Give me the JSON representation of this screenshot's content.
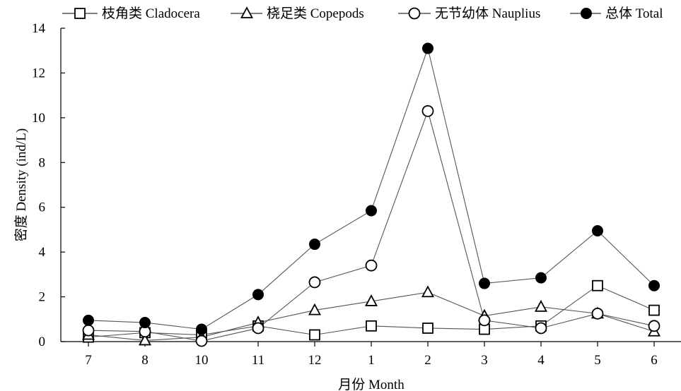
{
  "chart_data": {
    "type": "line",
    "categories": [
      "7",
      "8",
      "10",
      "11",
      "12",
      "1",
      "2",
      "3",
      "4",
      "5",
      "6"
    ],
    "xlabel": "月份 Month",
    "ylabel": "密度 Density (ind/L)",
    "ylim": [
      0,
      14
    ],
    "yticks": [
      "0",
      "2",
      "4",
      "6",
      "8",
      "10",
      "12",
      "14"
    ],
    "grid": false,
    "legend_position": "top",
    "series": [
      {
        "name": "枝角类 Cladocera",
        "marker": "square",
        "values": [
          0.2,
          0.4,
          0.3,
          0.7,
          0.3,
          0.7,
          0.6,
          0.55,
          0.7,
          2.5,
          1.4
        ]
      },
      {
        "name": "桡足类 Copepods",
        "marker": "triangle",
        "values": [
          0.3,
          0.05,
          0.2,
          0.85,
          1.4,
          1.8,
          2.2,
          1.15,
          1.55,
          1.25,
          0.45
        ]
      },
      {
        "name": "无节幼体 Nauplius",
        "marker": "circle-open",
        "values": [
          0.5,
          0.45,
          0.03,
          0.6,
          2.65,
          3.4,
          10.3,
          0.95,
          0.6,
          1.25,
          0.7
        ]
      },
      {
        "name": "总体 Total",
        "marker": "circle-filled",
        "values": [
          0.95,
          0.85,
          0.55,
          2.1,
          4.35,
          5.85,
          13.1,
          2.6,
          2.85,
          4.95,
          2.5
        ]
      }
    ]
  }
}
